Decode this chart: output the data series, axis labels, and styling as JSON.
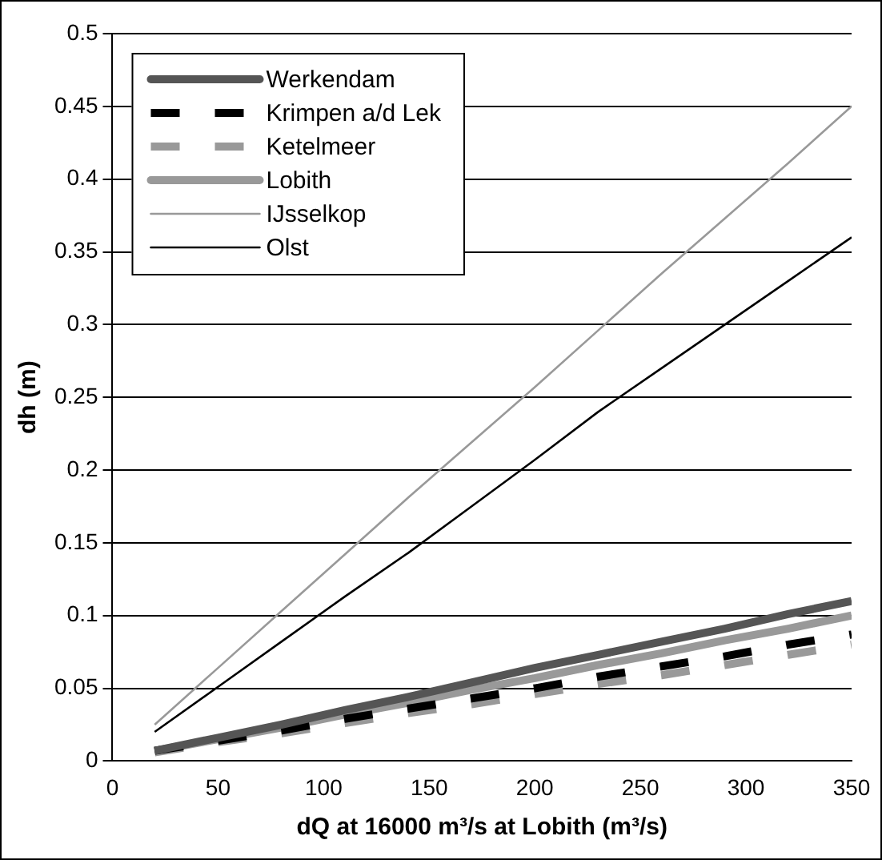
{
  "chart_data": {
    "type": "line",
    "xlabel": "dQ at 16000 m³/s at Lobith (m³/s)",
    "ylabel": "dh (m)",
    "x": [
      20,
      50,
      80,
      110,
      140,
      170,
      200,
      230,
      260,
      290,
      320,
      350
    ],
    "series": [
      {
        "name": "Werkendam",
        "color": "#555555",
        "line_style": "solid",
        "values": [
          0.007,
          0.016,
          0.025,
          0.035,
          0.044,
          0.054,
          0.064,
          0.073,
          0.082,
          0.091,
          0.101,
          0.11
        ]
      },
      {
        "name": "Krimpen a/d Lek",
        "color": "#000000",
        "line_style": "dashed",
        "values": [
          0.007,
          0.014,
          0.021,
          0.029,
          0.036,
          0.043,
          0.05,
          0.058,
          0.065,
          0.072,
          0.08,
          0.087
        ]
      },
      {
        "name": "Ketelmeer",
        "color": "#999999",
        "line_style": "dashed",
        "values": [
          0.006,
          0.013,
          0.019,
          0.026,
          0.033,
          0.039,
          0.046,
          0.053,
          0.059,
          0.066,
          0.073,
          0.08
        ]
      },
      {
        "name": "Lobith",
        "color": "#999999",
        "line_style": "solid",
        "values": [
          0.007,
          0.015,
          0.023,
          0.032,
          0.04,
          0.049,
          0.057,
          0.066,
          0.074,
          0.083,
          0.091,
          0.1
        ]
      },
      {
        "name": "IJsselkop",
        "color": "#999999",
        "line_style": "solid",
        "values": [
          0.025,
          0.064,
          0.103,
          0.142,
          0.181,
          0.219,
          0.257,
          0.296,
          0.335,
          0.373,
          0.411,
          0.45
        ]
      },
      {
        "name": "Olst",
        "color": "#000000",
        "line_style": "solid",
        "values": [
          0.02,
          0.051,
          0.082,
          0.113,
          0.143,
          0.175,
          0.207,
          0.24,
          0.27,
          0.3,
          0.33,
          0.36
        ]
      }
    ],
    "xlim": [
      0,
      350
    ],
    "xticks": [
      0,
      50,
      100,
      150,
      200,
      250,
      300,
      350
    ],
    "ylim": [
      0,
      0.5
    ],
    "yticks": [
      0,
      0.05,
      0.1,
      0.15,
      0.2,
      0.25,
      0.3,
      0.35,
      0.4,
      0.45,
      0.5
    ],
    "grid": "y",
    "legend": "top left",
    "marker": "none"
  }
}
